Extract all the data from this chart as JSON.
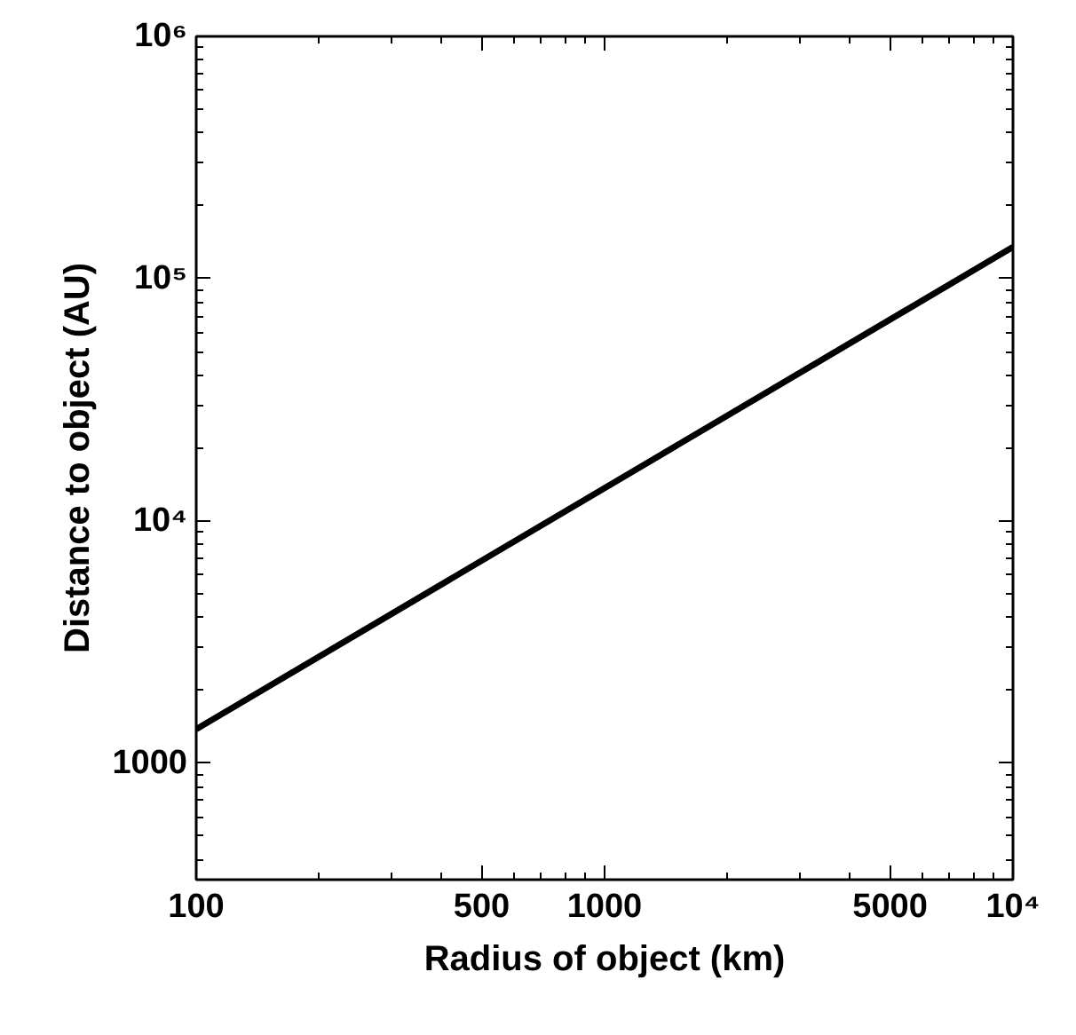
{
  "chart_data": {
    "type": "line",
    "xlabel": "Radius of object (km)",
    "ylabel": "Distance to object (AU)",
    "log": "xy",
    "x": [
      100,
      10000
    ],
    "series": [
      {
        "color": "#000000",
        "values": [
          1380,
          135000
        ]
      }
    ],
    "xlim": [
      100,
      10000
    ],
    "ylim": [
      330,
      1000000
    ],
    "xticks": [
      100,
      500,
      1000,
      5000,
      {
        "value": 10000,
        "label": "10⁴"
      }
    ],
    "yticks": [
      1000,
      {
        "value": 10000,
        "label": "10⁴"
      },
      {
        "value": 100000,
        "label": "10⁵"
      },
      {
        "value": 1000000,
        "label": "10⁶"
      }
    ],
    "marker": "none",
    "line_style": "solid"
  }
}
